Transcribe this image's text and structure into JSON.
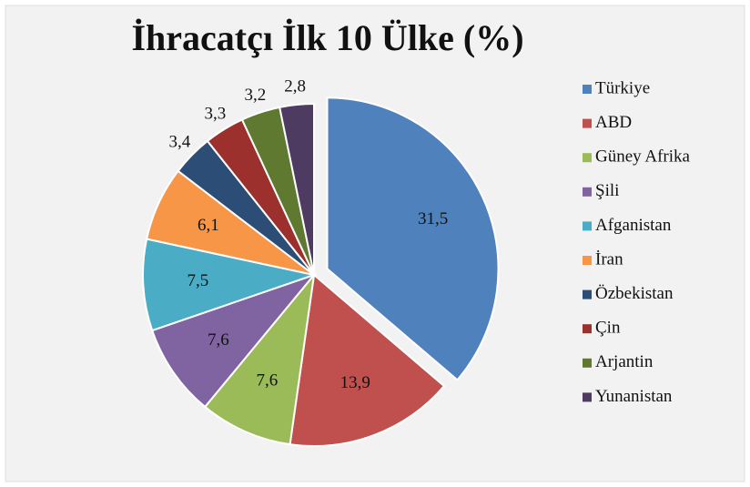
{
  "chart_data": {
    "type": "pie",
    "title": "İhracatçı İlk 10 Ülke (%)",
    "categories": [
      "Türkiye",
      "ABD",
      "Güney Afrika",
      "Şili",
      "Afganistan",
      "İran",
      "Özbekistan",
      "Çin",
      "Arjantin",
      "Yunanistan"
    ],
    "values": [
      31.5,
      13.9,
      7.6,
      7.6,
      7.5,
      6.1,
      3.4,
      3.3,
      3.2,
      2.8
    ],
    "value_labels": [
      "31,5",
      "13,9",
      "7,6",
      "7,6",
      "7,5",
      "6,1",
      "3,4",
      "3,3",
      "3,2",
      "2,8"
    ],
    "colors": [
      "#4f81bd",
      "#c0504d",
      "#9bbb59",
      "#8064a2",
      "#4bacc6",
      "#f79646",
      "#2c4d75",
      "#9b302c",
      "#5f7a30",
      "#4d3b62"
    ],
    "legend": "right"
  }
}
